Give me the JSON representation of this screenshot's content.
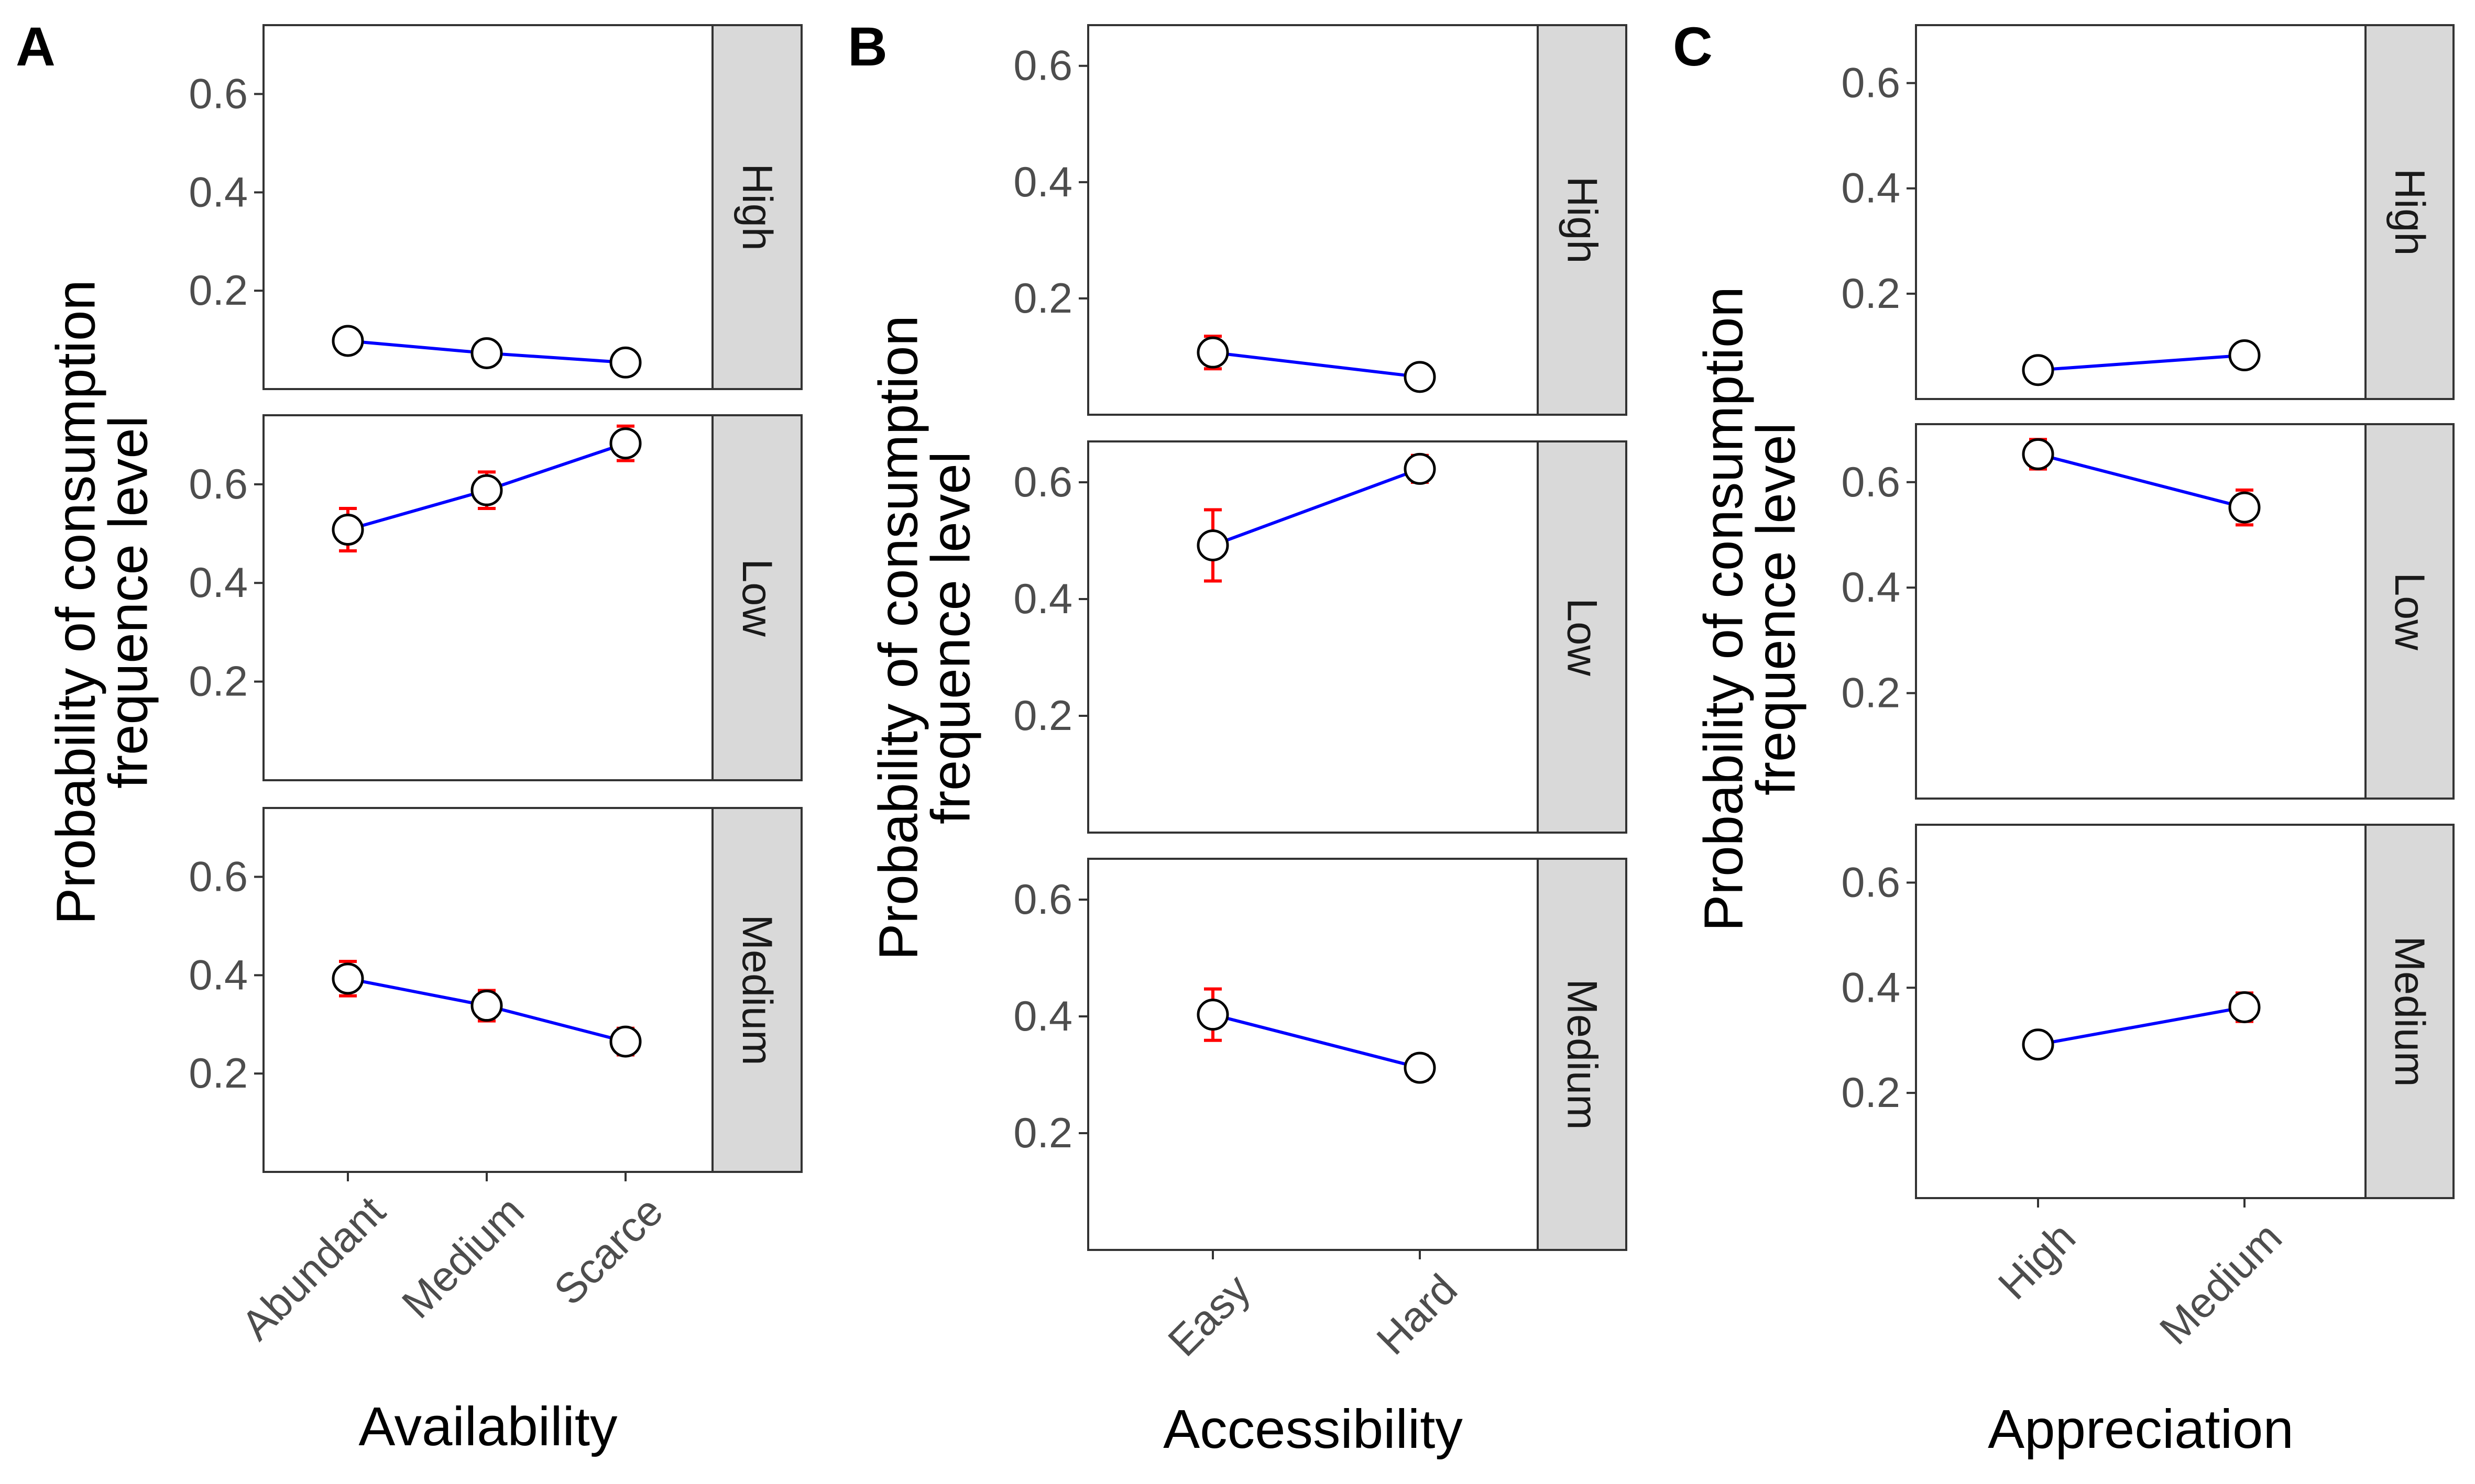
{
  "chart_data": [
    {
      "type": "line",
      "panel_label": "A",
      "xlabel": "Availability",
      "ylabel_lines": [
        "Probability of consumption",
        "frequence level"
      ],
      "categories": [
        "Abundant",
        "Medium",
        "Scarce"
      ],
      "facets": [
        {
          "label": "High",
          "values": [
            0.098,
            0.073,
            0.054
          ],
          "errors": [
            0.008,
            0.008,
            0.008
          ],
          "yticks": [
            "0.2",
            "0.4",
            "0.6"
          ],
          "ylim": [
            0.0,
            0.74
          ]
        },
        {
          "label": "Low",
          "values": [
            0.508,
            0.588,
            0.683
          ],
          "errors": [
            0.043,
            0.037,
            0.035
          ],
          "yticks": [
            "0.2",
            "0.4",
            "0.6"
          ],
          "ylim": [
            0.0,
            0.74
          ]
        },
        {
          "label": "Medium",
          "values": [
            0.393,
            0.338,
            0.265
          ],
          "errors": [
            0.035,
            0.031,
            0.027
          ],
          "yticks": [
            "0.2",
            "0.4",
            "0.6"
          ],
          "ylim": [
            0.0,
            0.74
          ]
        }
      ],
      "colors": {
        "line": "#0000ff",
        "error_bar": "#ff0000",
        "point_fill": "#ffffff",
        "strip_fill": "#d9d9d9"
      }
    },
    {
      "type": "line",
      "panel_label": "B",
      "xlabel": "Accessibility",
      "ylabel_lines": [
        "Probability of consumption",
        "frequence level"
      ],
      "categories": [
        "Easy",
        "Hard"
      ],
      "facets": [
        {
          "label": "High",
          "values": [
            0.107,
            0.065
          ],
          "errors": [
            0.028,
            0.006
          ],
          "yticks": [
            "0.2",
            "0.4",
            "0.6"
          ],
          "ylim": [
            0.0,
            0.67
          ]
        },
        {
          "label": "Low",
          "values": [
            0.492,
            0.623
          ],
          "errors": [
            0.061,
            0.023
          ],
          "yticks": [
            "0.2",
            "0.4",
            "0.6"
          ],
          "ylim": [
            0.0,
            0.67
          ]
        },
        {
          "label": "Medium",
          "values": [
            0.403,
            0.312
          ],
          "errors": [
            0.044,
            0.021
          ],
          "yticks": [
            "0.2",
            "0.4",
            "0.6"
          ],
          "ylim": [
            0.0,
            0.67
          ]
        }
      ],
      "colors": {
        "line": "#0000ff",
        "error_bar": "#ff0000",
        "point_fill": "#ffffff",
        "strip_fill": "#d9d9d9"
      }
    },
    {
      "type": "line",
      "panel_label": "C",
      "xlabel": "Appreciation",
      "ylabel_lines": [
        "Probability of consumption",
        "frequence level"
      ],
      "categories": [
        "High",
        "Medium"
      ],
      "facets": [
        {
          "label": "High",
          "values": [
            0.055,
            0.083
          ],
          "errors": [
            0.008,
            0.008
          ],
          "yticks": [
            "0.2",
            "0.4",
            "0.6"
          ],
          "ylim": [
            0.0,
            0.71
          ]
        },
        {
          "label": "Low",
          "values": [
            0.653,
            0.552
          ],
          "errors": [
            0.028,
            0.033
          ],
          "yticks": [
            "0.2",
            "0.4",
            "0.6"
          ],
          "ylim": [
            0.0,
            0.71
          ]
        },
        {
          "label": "Medium",
          "values": [
            0.292,
            0.363
          ],
          "errors": [
            0.018,
            0.027
          ],
          "yticks": [
            "0.2",
            "0.4",
            "0.6"
          ],
          "ylim": [
            0.0,
            0.71
          ]
        }
      ],
      "colors": {
        "line": "#0000ff",
        "error_bar": "#ff0000",
        "point_fill": "#ffffff",
        "strip_fill": "#d9d9d9"
      }
    }
  ]
}
